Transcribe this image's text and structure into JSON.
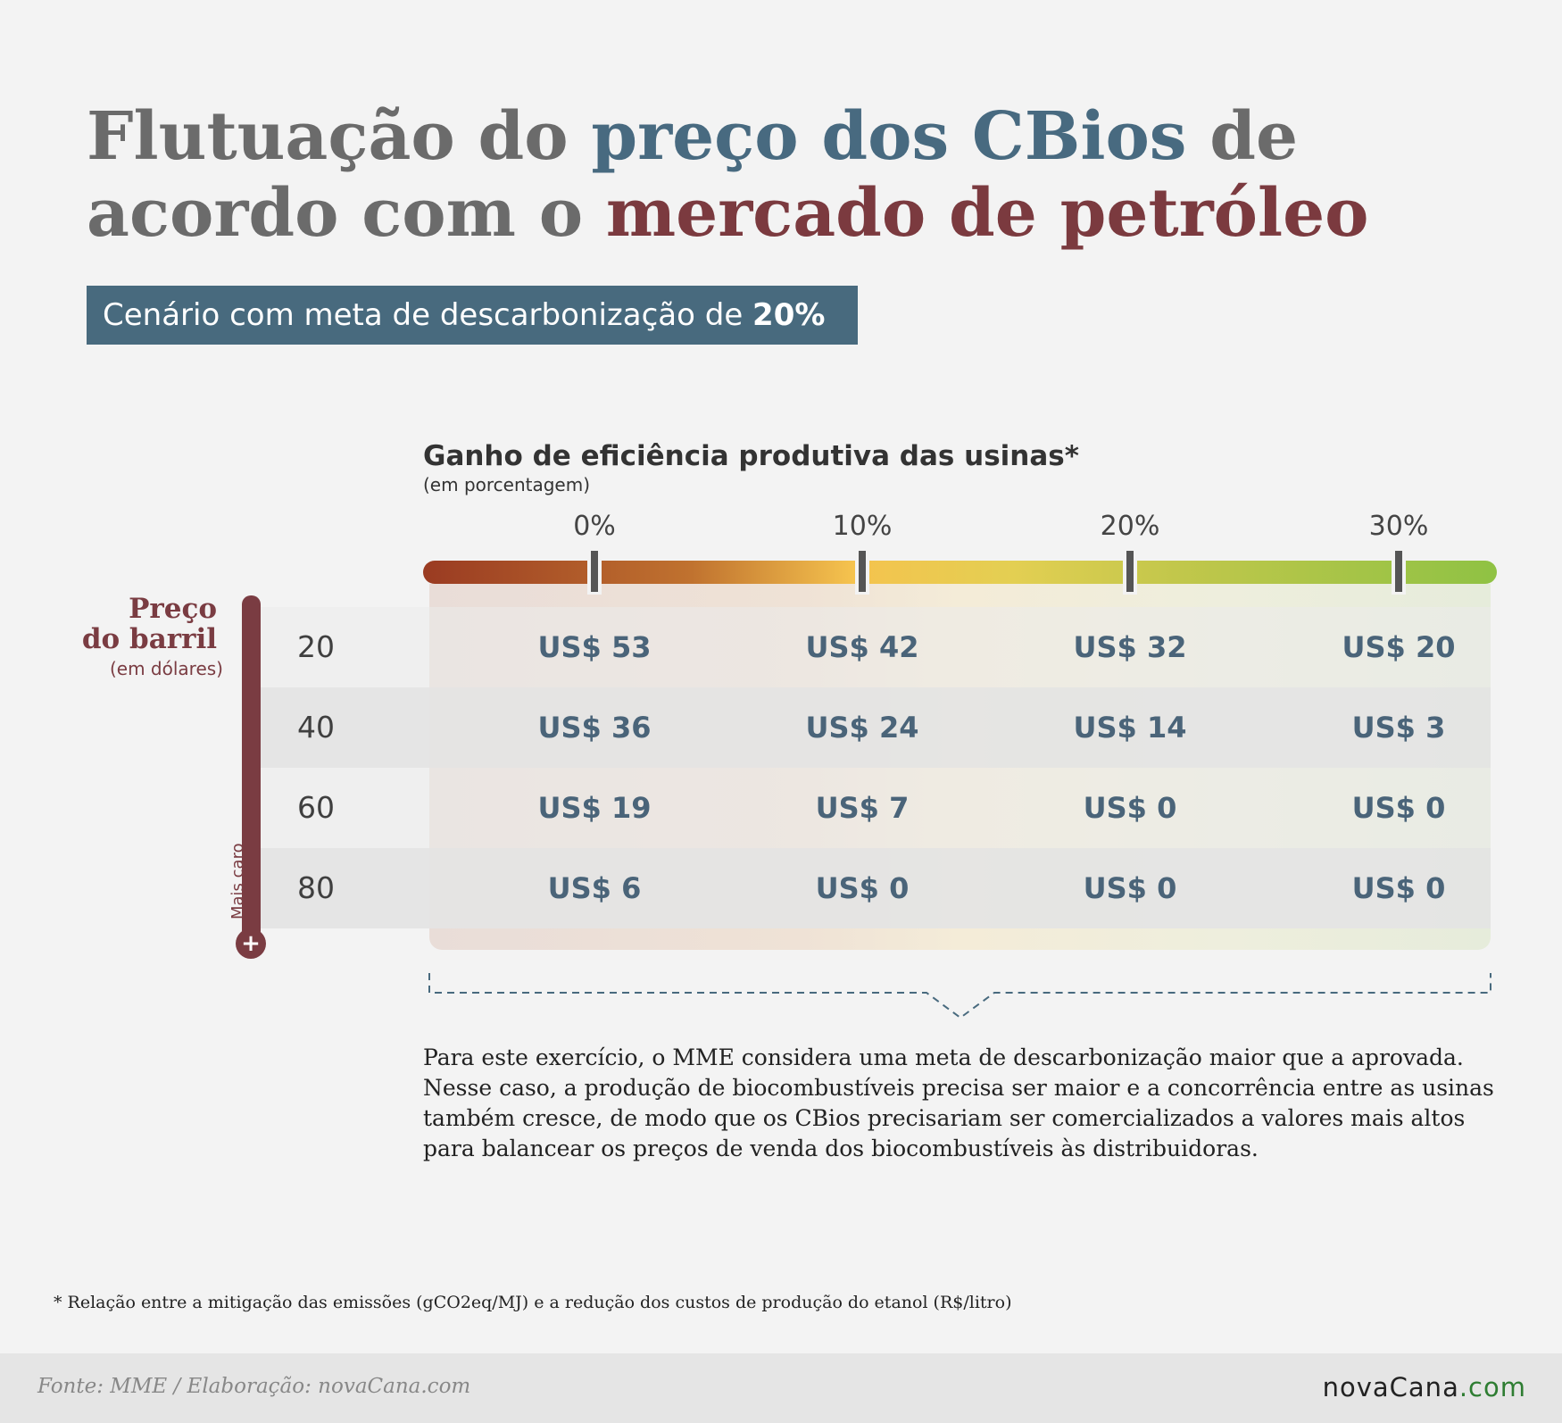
{
  "title": {
    "part1": "Flutuação do ",
    "part2": "preço dos CBios",
    "part3": " de acordo com o ",
    "part4": "mercado de petróleo"
  },
  "scenario": {
    "text": "Cenário com meta de descarbonização de ",
    "value": "20%"
  },
  "colors": {
    "title_gray": "#6b6b6b",
    "title_blue": "#486a80",
    "title_red": "#7b3a3f",
    "scenario_bg": "#486a7e",
    "cell_text": "#4a6479",
    "thermo": "#7a3c42"
  },
  "chart_data": {
    "type": "table",
    "column_title": "Ganho de eficiência produtiva das usinas*",
    "column_subtitle": "(em porcentagem)",
    "columns": [
      "0%",
      "10%",
      "20%",
      "30%"
    ],
    "row_title_line1": "Preço",
    "row_title_line2": "do barril",
    "row_subtitle": "(em dólares)",
    "row_axis_note": "Mais caro",
    "row_axis_icon": "plus-icon",
    "rows": [
      "20",
      "40",
      "60",
      "80"
    ],
    "cells": [
      [
        "US$ 53",
        "US$ 42",
        "US$ 32",
        "US$ 20"
      ],
      [
        "US$ 36",
        "US$ 24",
        "US$ 14",
        "US$ 3"
      ],
      [
        "US$ 19",
        "US$ 7",
        "US$ 0",
        "US$ 0"
      ],
      [
        "US$ 6",
        "US$ 0",
        "US$ 0",
        "US$ 0"
      ]
    ],
    "values": [
      [
        53,
        42,
        32,
        20
      ],
      [
        36,
        24,
        14,
        3
      ],
      [
        19,
        7,
        0,
        0
      ],
      [
        6,
        0,
        0,
        0
      ]
    ],
    "gradient_colors": [
      "#9a3b22",
      "#f5c34e",
      "#8fc244"
    ]
  },
  "note": "Para este exercício, o MME considera uma meta de descarbonização maior que a aprovada. Nesse caso, a produção de biocombustíveis precisa ser maior e a concorrência entre as usinas também cresce, de modo que os CBios precisariam ser comercializados a valores mais altos para balancear os preços de venda dos biocombustíveis às distribuidoras.",
  "footnote": "* Relação entre a mitigação das emissões (gCO2eq/MJ) e a redução dos custos de produção do etanol (R$/litro)",
  "footer": {
    "source": "Fonte: MME / Elaboração: novaCana.com",
    "brand_name": "novaCana",
    "brand_domain": ".com"
  }
}
